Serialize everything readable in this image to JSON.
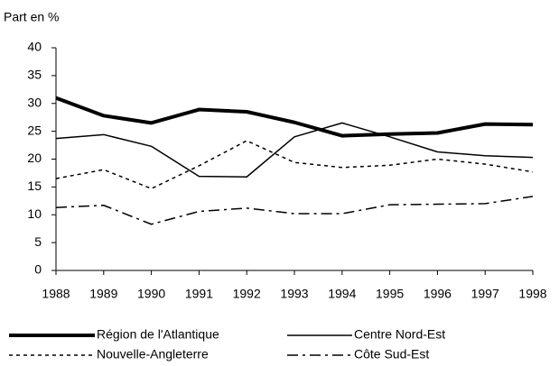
{
  "chart_data": {
    "type": "line",
    "y_axis_label": "Part en %",
    "x": [
      1988,
      1989,
      1990,
      1991,
      1992,
      1993,
      1994,
      1995,
      1996,
      1997,
      1998
    ],
    "xlim": [
      1988,
      1998
    ],
    "xticks": [
      1988,
      1989,
      1990,
      1991,
      1992,
      1993,
      1994,
      1995,
      1996,
      1997,
      1998
    ],
    "ylim": [
      0,
      40
    ],
    "yticks": [
      0,
      5,
      10,
      15,
      20,
      25,
      30,
      35,
      40
    ],
    "grid": false,
    "series": [
      {
        "name": "Région de l'Atlantique",
        "color": "#000000",
        "line_width": 4,
        "dash": "solid",
        "values": [
          31,
          27.8,
          26.5,
          28.9,
          28.5,
          26.6,
          24.2,
          24.5,
          24.7,
          26.3,
          26.2
        ]
      },
      {
        "name": "Centre Nord-Est",
        "color": "#000000",
        "line_width": 1.5,
        "dash": "solid",
        "values": [
          23.7,
          24.4,
          22.3,
          16.9,
          16.8,
          24,
          26.5,
          24,
          21.3,
          20.6,
          20.3
        ]
      },
      {
        "name": "Nouvelle-Angleterre",
        "color": "#000000",
        "line_width": 1.5,
        "dash": "dotted",
        "values": [
          16.5,
          18.1,
          14.7,
          18.8,
          23.3,
          19.4,
          18.5,
          18.9,
          20,
          19.1,
          17.7
        ]
      },
      {
        "name": "Côte Sud-Est",
        "color": "#000000",
        "line_width": 1.5,
        "dash": "dashdot",
        "values": [
          11.3,
          11.7,
          8.3,
          10.6,
          11.2,
          10.2,
          10.2,
          11.8,
          11.9,
          12,
          13.3
        ]
      }
    ]
  }
}
